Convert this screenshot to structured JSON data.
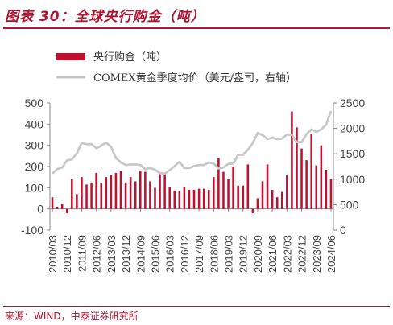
{
  "title": "图表 30：全球央行购金（吨）",
  "source": "来源：WIND，中泰证券研究所",
  "colors": {
    "bar": "#c0102e",
    "line": "#c8c8c8",
    "accent": "#b0142f",
    "axis": "#888888",
    "text": "#444444"
  },
  "chart_data": {
    "type": "bar+line",
    "legend_position": "top",
    "grid": false,
    "series": [
      {
        "name": "央行购金（吨）",
        "type": "bar",
        "axis": "left"
      },
      {
        "name": "COMEX黄金季度均价（美元/盎司，右轴）",
        "type": "line",
        "axis": "right"
      }
    ],
    "left_axis": {
      "min": -100,
      "max": 500,
      "ticks": [
        -100,
        0,
        100,
        200,
        300,
        400,
        500
      ]
    },
    "right_axis": {
      "min": 0,
      "max": 2500,
      "ticks": [
        0,
        500,
        1000,
        1500,
        2000,
        2500
      ]
    },
    "x_tick_labels": [
      "2010/03",
      "2010/12",
      "2011/09",
      "2012/06",
      "2013/03",
      "2013/12",
      "2014/09",
      "2015/06",
      "2016/03",
      "2016/12",
      "2017/09",
      "2018/06",
      "2019/03",
      "2019/12",
      "2020/09",
      "2021/06",
      "2022/03",
      "2022/12",
      "2023/09",
      "2024/06"
    ],
    "quarters": [
      "2010/03",
      "2010/06",
      "2010/09",
      "2010/12",
      "2011/03",
      "2011/06",
      "2011/09",
      "2011/12",
      "2012/03",
      "2012/06",
      "2012/09",
      "2012/12",
      "2013/03",
      "2013/06",
      "2013/09",
      "2013/12",
      "2014/03",
      "2014/06",
      "2014/09",
      "2014/12",
      "2015/03",
      "2015/06",
      "2015/09",
      "2015/12",
      "2016/03",
      "2016/06",
      "2016/09",
      "2016/12",
      "2017/03",
      "2017/06",
      "2017/09",
      "2017/12",
      "2018/03",
      "2018/06",
      "2018/09",
      "2018/12",
      "2019/03",
      "2019/06",
      "2019/09",
      "2019/12",
      "2020/03",
      "2020/06",
      "2020/09",
      "2020/12",
      "2021/03",
      "2021/06",
      "2021/09",
      "2021/12",
      "2022/03",
      "2022/06",
      "2022/09",
      "2022/12",
      "2023/03",
      "2023/06",
      "2023/09",
      "2023/12",
      "2024/03",
      "2024/06"
    ],
    "bar_values": [
      55,
      10,
      25,
      -20,
      140,
      70,
      150,
      115,
      125,
      170,
      120,
      150,
      160,
      170,
      180,
      125,
      150,
      130,
      180,
      175,
      130,
      100,
      165,
      165,
      105,
      85,
      85,
      105,
      90,
      90,
      95,
      95,
      90,
      150,
      240,
      175,
      140,
      200,
      110,
      110,
      210,
      -20,
      50,
      130,
      210,
      90,
      55,
      80,
      160,
      460,
      385,
      285,
      230,
      355,
      205,
      300,
      185,
      140
    ],
    "line_values": [
      1110,
      1200,
      1230,
      1370,
      1390,
      1510,
      1710,
      1690,
      1690,
      1610,
      1660,
      1720,
      1640,
      1420,
      1330,
      1280,
      1290,
      1290,
      1280,
      1200,
      1220,
      1190,
      1120,
      1110,
      1180,
      1260,
      1340,
      1220,
      1220,
      1260,
      1280,
      1280,
      1330,
      1310,
      1210,
      1230,
      1300,
      1310,
      1480,
      1480,
      1580,
      1710,
      1910,
      1870,
      1790,
      1820,
      1790,
      1800,
      1880,
      1870,
      1730,
      1730,
      1890,
      1980,
      1930,
      1980,
      2070,
      2340
    ]
  }
}
